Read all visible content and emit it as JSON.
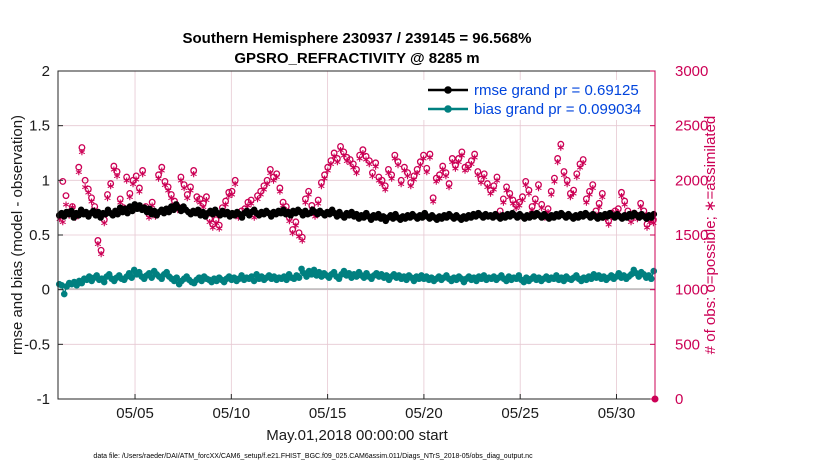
{
  "chart_data": {
    "type": "line",
    "title_line1": "Southern Hemisphere 230937 / 239145 = 96.568%",
    "title_line2": "GPSRO_REFRACTIVITY @ 8285 m",
    "xlabel": "May.01,2018 00:00:00 start",
    "ylabel_left": "rmse and bias (model - observation)",
    "ylabel_right": "# of obs: o=possible; ∗=assimilated",
    "xlim": [
      1,
      32
    ],
    "ylim_left": [
      -1,
      2
    ],
    "ylim_right": [
      0,
      3000
    ],
    "x_tick_labels": [
      "05/05",
      "05/10",
      "05/15",
      "05/20",
      "05/25",
      "05/30"
    ],
    "x_tick_values": [
      5,
      10,
      15,
      20,
      25,
      30
    ],
    "y_left_ticks": [
      -1,
      -0.5,
      0,
      0.5,
      1,
      1.5,
      2
    ],
    "y_right_ticks": [
      0,
      500,
      1000,
      1500,
      2000,
      2500,
      3000
    ],
    "colors": {
      "rmse": "#000000",
      "bias": "#008080",
      "obs": "#cc0055",
      "legend_text": "#0044dd",
      "grid": "#e6c8d2"
    },
    "legend": [
      {
        "name": "rmse grand pr = 0.69125"
      },
      {
        "name": "bias grand pr = 0.099034"
      }
    ],
    "series": [
      {
        "name": "rmse",
        "values": [
          0.68,
          0.7,
          0.67,
          0.71,
          0.69,
          0.72,
          0.66,
          0.7,
          0.68,
          0.73,
          0.69,
          0.71,
          0.67,
          0.7,
          0.72,
          0.68,
          0.71,
          0.66,
          0.7,
          0.69,
          0.73,
          0.7,
          0.68,
          0.72,
          0.69,
          0.75,
          0.71,
          0.74,
          0.7,
          0.76,
          0.72,
          0.78,
          0.74,
          0.77,
          0.73,
          0.75,
          0.71,
          0.74,
          0.69,
          0.72,
          0.68,
          0.71,
          0.73,
          0.7,
          0.74,
          0.71,
          0.76,
          0.73,
          0.78,
          0.75,
          0.72,
          0.76,
          0.73,
          0.71,
          0.69,
          0.72,
          0.7,
          0.73,
          0.68,
          0.71,
          0.67,
          0.7,
          0.72,
          0.69,
          0.73,
          0.7,
          0.68,
          0.72,
          0.69,
          0.71,
          0.67,
          0.7,
          0.68,
          0.71,
          0.69,
          0.66,
          0.7,
          0.72,
          0.68,
          0.71,
          0.73,
          0.7,
          0.68,
          0.71,
          0.69,
          0.72,
          0.7,
          0.67,
          0.71,
          0.69,
          0.72,
          0.7,
          0.73,
          0.69,
          0.71,
          0.68,
          0.72,
          0.7,
          0.73,
          0.71,
          0.68,
          0.72,
          0.69,
          0.7,
          0.73,
          0.71,
          0.69,
          0.72,
          0.7,
          0.68,
          0.71,
          0.69,
          0.73,
          0.7,
          0.67,
          0.71,
          0.68,
          0.66,
          0.7,
          0.68,
          0.71,
          0.67,
          0.69,
          0.65,
          0.68,
          0.66,
          0.7,
          0.67,
          0.64,
          0.68,
          0.66,
          0.69,
          0.65,
          0.67,
          0.63,
          0.66,
          0.68,
          0.65,
          0.69,
          0.66,
          0.64,
          0.67,
          0.65,
          0.68,
          0.66,
          0.69,
          0.67,
          0.65,
          0.68,
          0.66,
          0.7,
          0.67,
          0.65,
          0.68,
          0.66,
          0.64,
          0.67,
          0.65,
          0.68,
          0.66,
          0.69,
          0.67,
          0.65,
          0.68,
          0.66,
          0.64,
          0.67,
          0.65,
          0.68,
          0.66,
          0.69,
          0.67,
          0.7,
          0.68,
          0.66,
          0.69,
          0.67,
          0.68,
          0.66,
          0.69,
          0.67,
          0.65,
          0.68,
          0.66,
          0.69,
          0.67,
          0.7,
          0.68,
          0.66,
          0.69,
          0.67,
          0.65,
          0.68,
          0.66,
          0.69,
          0.67,
          0.7,
          0.68,
          0.66,
          0.69,
          0.67,
          0.65,
          0.68,
          0.66,
          0.69,
          0.67,
          0.7,
          0.68,
          0.66,
          0.69,
          0.67,
          0.65,
          0.68,
          0.66,
          0.69,
          0.67,
          0.7,
          0.68,
          0.66,
          0.69,
          0.67,
          0.65,
          0.68,
          0.66,
          0.69,
          0.67,
          0.7,
          0.68,
          0.66,
          0.69,
          0.67,
          0.65,
          0.68,
          0.66,
          0.69,
          0.67,
          0.7,
          0.68,
          0.66,
          0.69,
          0.67,
          0.65,
          0.68,
          0.66,
          0.69
        ]
      },
      {
        "name": "bias",
        "values": [
          0.05,
          0.04,
          -0.04,
          0.03,
          0.06,
          0.05,
          0.07,
          0.04,
          0.08,
          0.06,
          0.1,
          0.09,
          0.12,
          0.08,
          0.11,
          0.13,
          0.09,
          0.1,
          0.07,
          0.12,
          0.14,
          0.1,
          0.08,
          0.11,
          0.13,
          0.1,
          0.09,
          0.12,
          0.15,
          0.11,
          0.18,
          0.14,
          0.16,
          0.12,
          0.1,
          0.13,
          0.15,
          0.11,
          0.17,
          0.14,
          0.12,
          0.1,
          0.14,
          0.16,
          0.12,
          0.1,
          0.08,
          0.11,
          0.05,
          0.08,
          0.1,
          0.12,
          0.09,
          0.07,
          0.06,
          0.09,
          0.11,
          0.08,
          0.12,
          0.1,
          0.09,
          0.07,
          0.1,
          0.08,
          0.11,
          0.09,
          0.07,
          0.1,
          0.12,
          0.09,
          0.11,
          0.08,
          0.1,
          0.13,
          0.09,
          0.11,
          0.1,
          0.12,
          0.08,
          0.14,
          0.1,
          0.12,
          0.09,
          0.11,
          0.13,
          0.1,
          0.12,
          0.09,
          0.11,
          0.1,
          0.12,
          0.09,
          0.14,
          0.11,
          0.1,
          0.13,
          0.11,
          0.19,
          0.15,
          0.12,
          0.17,
          0.14,
          0.18,
          0.13,
          0.16,
          0.12,
          0.15,
          0.13,
          0.11,
          0.14,
          0.16,
          0.12,
          0.1,
          0.14,
          0.17,
          0.13,
          0.15,
          0.11,
          0.14,
          0.12,
          0.16,
          0.13,
          0.11,
          0.15,
          0.12,
          0.1,
          0.13,
          0.15,
          0.12,
          0.14,
          0.11,
          0.13,
          0.09,
          0.12,
          0.14,
          0.11,
          0.13,
          0.1,
          0.12,
          0.09,
          0.13,
          0.11,
          0.08,
          0.12,
          0.1,
          0.13,
          0.1,
          0.12,
          0.09,
          0.11,
          0.08,
          0.1,
          0.12,
          0.09,
          0.11,
          0.13,
          0.1,
          0.08,
          0.11,
          0.09,
          0.12,
          0.1,
          0.07,
          0.1,
          0.12,
          0.09,
          0.11,
          0.08,
          0.12,
          0.1,
          0.13,
          0.09,
          0.11,
          0.1,
          0.12,
          0.09,
          0.11,
          0.13,
          0.1,
          0.08,
          0.12,
          0.09,
          0.11,
          0.1,
          0.13,
          0.09,
          0.07,
          0.11,
          0.08,
          0.1,
          0.12,
          0.09,
          0.11,
          0.08,
          0.1,
          0.12,
          0.09,
          0.11,
          0.1,
          0.13,
          0.09,
          0.11,
          0.08,
          0.12,
          0.1,
          0.09,
          0.11,
          0.13,
          0.1,
          0.08,
          0.11,
          0.09,
          0.12,
          0.1,
          0.14,
          0.11,
          0.13,
          0.1,
          0.12,
          0.09,
          0.11,
          0.13,
          0.1,
          0.12,
          0.15,
          0.11,
          0.13,
          0.1,
          0.12,
          0.14,
          0.18,
          0.15,
          0.12,
          0.16,
          0.14,
          0.11,
          0.13,
          0.1,
          0.17
        ]
      },
      {
        "name": "nposs",
        "values": [
          1680,
          1990,
          1860,
          1710,
          1760,
          1680,
          2120,
          2300,
          2000,
          1920,
          1840,
          1760,
          1450,
          1360,
          1640,
          1870,
          1970,
          2130,
          2080,
          1830,
          1750,
          2030,
          1880,
          2000,
          2040,
          1930,
          2090,
          1760,
          1690,
          1800,
          1700,
          2050,
          2120,
          1990,
          1940,
          1870,
          1810,
          1760,
          2030,
          1960,
          1870,
          1940,
          2090,
          1850,
          1830,
          1790,
          1850,
          1650,
          1600,
          1640,
          1590,
          1750,
          1810,
          1890,
          1900,
          2000,
          1690,
          1720,
          1740,
          1800,
          1820,
          1690,
          1860,
          1900,
          1950,
          2000,
          2100,
          2030,
          2060,
          1930,
          1800,
          1760,
          1660,
          1550,
          1620,
          1520,
          1480,
          1830,
          1900,
          1770,
          1700,
          1820,
          1980,
          2050,
          2120,
          2180,
          2250,
          2200,
          2310,
          2260,
          2210,
          2190,
          2150,
          2100,
          2230,
          2280,
          2220,
          2180,
          2070,
          2160,
          2030,
          2000,
          1950,
          2100,
          2050,
          2230,
          2170,
          2000,
          2120,
          2070,
          1980,
          2040,
          2100,
          2170,
          2230,
          2110,
          2240,
          1840,
          2020,
          2050,
          2130,
          2070,
          1970,
          2200,
          2140,
          2200,
          2260,
          2120,
          2140,
          2180,
          2240,
          2080,
          2010,
          2060,
          1970,
          1910,
          1950,
          2030,
          1720,
          1830,
          1940,
          1880,
          1820,
          1780,
          1800,
          1850,
          1990,
          1910,
          1760,
          1830,
          1960,
          1780,
          1690,
          1740,
          1900,
          2020,
          2200,
          2330,
          2080,
          2000,
          1880,
          1910,
          2060,
          2150,
          2190,
          1830,
          1900,
          1960,
          1720,
          1790,
          1880,
          1680,
          1630,
          1700,
          1720,
          1740,
          1890,
          1810,
          1720,
          1650,
          1700,
          1680,
          1790,
          1720,
          1600,
          1650,
          1640
        ]
      },
      {
        "name": "nused",
        "values": [
          1630,
          1600,
          1760,
          1660,
          1740,
          1640,
          2060,
          2240,
          1920,
          1870,
          1790,
          1710,
          1400,
          1310,
          1590,
          1820,
          1930,
          2080,
          2020,
          1780,
          1700,
          1980,
          1830,
          1950,
          1990,
          1880,
          2040,
          1710,
          1640,
          1750,
          1650,
          2000,
          2070,
          1940,
          1890,
          1820,
          1760,
          1710,
          1980,
          1910,
          1820,
          1890,
          2040,
          1800,
          1780,
          1740,
          1800,
          1600,
          1550,
          1590,
          1540,
          1700,
          1760,
          1840,
          1850,
          1950,
          1640,
          1670,
          1690,
          1750,
          1770,
          1640,
          1810,
          1850,
          1900,
          1950,
          2050,
          1980,
          2010,
          1880,
          1750,
          1710,
          1610,
          1500,
          1570,
          1470,
          1430,
          1780,
          1850,
          1720,
          1650,
          1770,
          1930,
          2000,
          2070,
          2130,
          2200,
          2150,
          2260,
          2210,
          2160,
          2140,
          2100,
          2050,
          2180,
          2230,
          2170,
          2130,
          2020,
          2110,
          1980,
          1950,
          1900,
          2050,
          2000,
          2180,
          2120,
          1950,
          2070,
          2020,
          1930,
          1990,
          2050,
          2120,
          2180,
          2060,
          2190,
          1790,
          1970,
          2000,
          2080,
          2020,
          1920,
          2150,
          2090,
          2150,
          2210,
          2070,
          2090,
          2130,
          2190,
          2030,
          1960,
          2010,
          1920,
          1860,
          1900,
          1980,
          1670,
          1780,
          1890,
          1830,
          1770,
          1730,
          1750,
          1800,
          1940,
          1860,
          1710,
          1780,
          1910,
          1730,
          1640,
          1690,
          1850,
          1970,
          2150,
          2280,
          2030,
          1950,
          1830,
          1860,
          2010,
          2100,
          2140,
          1780,
          1850,
          1910,
          1670,
          1740,
          1830,
          1630,
          1580,
          1650,
          1670,
          1690,
          1840,
          1760,
          1670,
          1600,
          1650,
          1630,
          1740,
          1670,
          1550,
          1600,
          1590
        ]
      }
    ]
  },
  "footer": {
    "data_file": "data file: /Users/raeder/DAI/ATM_forcXX/CAM6_setup/f.e21.FHIST_BGC.f09_025.CAM6assim.011/Diags_NTrS_2018-05/obs_diag_output.nc"
  }
}
